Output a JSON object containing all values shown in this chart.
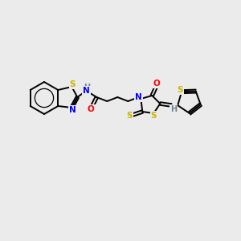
{
  "background_color": "#ebebeb",
  "bond_color": "#000000",
  "atom_colors": {
    "S": "#c8b400",
    "N": "#0000ff",
    "O": "#ff0000",
    "H": "#708090",
    "C": "#000000"
  },
  "figsize": [
    3.0,
    3.0
  ],
  "dpi": 100
}
